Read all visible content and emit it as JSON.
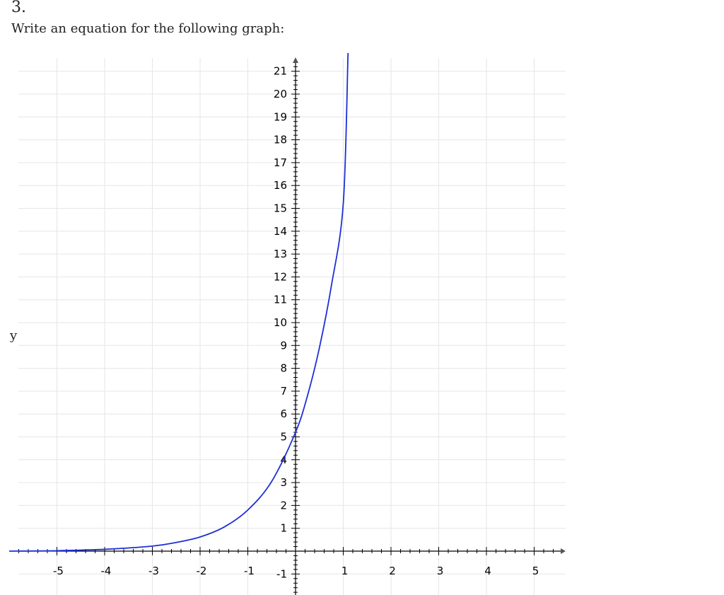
{
  "problem": {
    "number": "3.",
    "prompt": "Write an equation for the following graph:"
  },
  "y_side_label": "y",
  "chart_data": {
    "type": "line",
    "title": "",
    "xlabel": "",
    "ylabel": "y",
    "xlim": [
      -6,
      5.6
    ],
    "ylim": [
      -2,
      22
    ],
    "grid": true,
    "x_ticks": [
      -5,
      -4,
      -3,
      -2,
      -1,
      1,
      2,
      3,
      4,
      5
    ],
    "y_ticks": [
      -1,
      1,
      2,
      3,
      4,
      5,
      6,
      7,
      8,
      9,
      10,
      11,
      12,
      13,
      14,
      15,
      16,
      17,
      18,
      19,
      20,
      21
    ],
    "x_tick_labels": [
      "-5",
      "-4",
      "-3",
      "-2",
      "-1",
      "1",
      "2",
      "3",
      "4",
      "5"
    ],
    "y_tick_labels": [
      "-1",
      "1",
      "2",
      "3",
      "4",
      "5",
      "6",
      "7",
      "8",
      "9",
      "10",
      "11",
      "12",
      "13",
      "14",
      "15",
      "16",
      "17",
      "18",
      "19",
      "20",
      "21"
    ],
    "series": [
      {
        "color": "#1f2fd6",
        "x": [
          -6.0,
          -5.0,
          -4.0,
          -3.0,
          -2.5,
          -2.0,
          -1.5,
          -1.0,
          -0.5,
          0.0,
          0.25,
          0.5,
          0.75,
          1.0,
          1.1
        ],
        "y": [
          0.0,
          0.02,
          0.08,
          0.22,
          0.38,
          0.62,
          1.05,
          1.8,
          3.05,
          5.2,
          6.8,
          8.9,
          11.6,
          15.2,
          21.8
        ]
      }
    ],
    "colors": {
      "grid": "#e6e6e6",
      "axis": "#000000"
    }
  }
}
